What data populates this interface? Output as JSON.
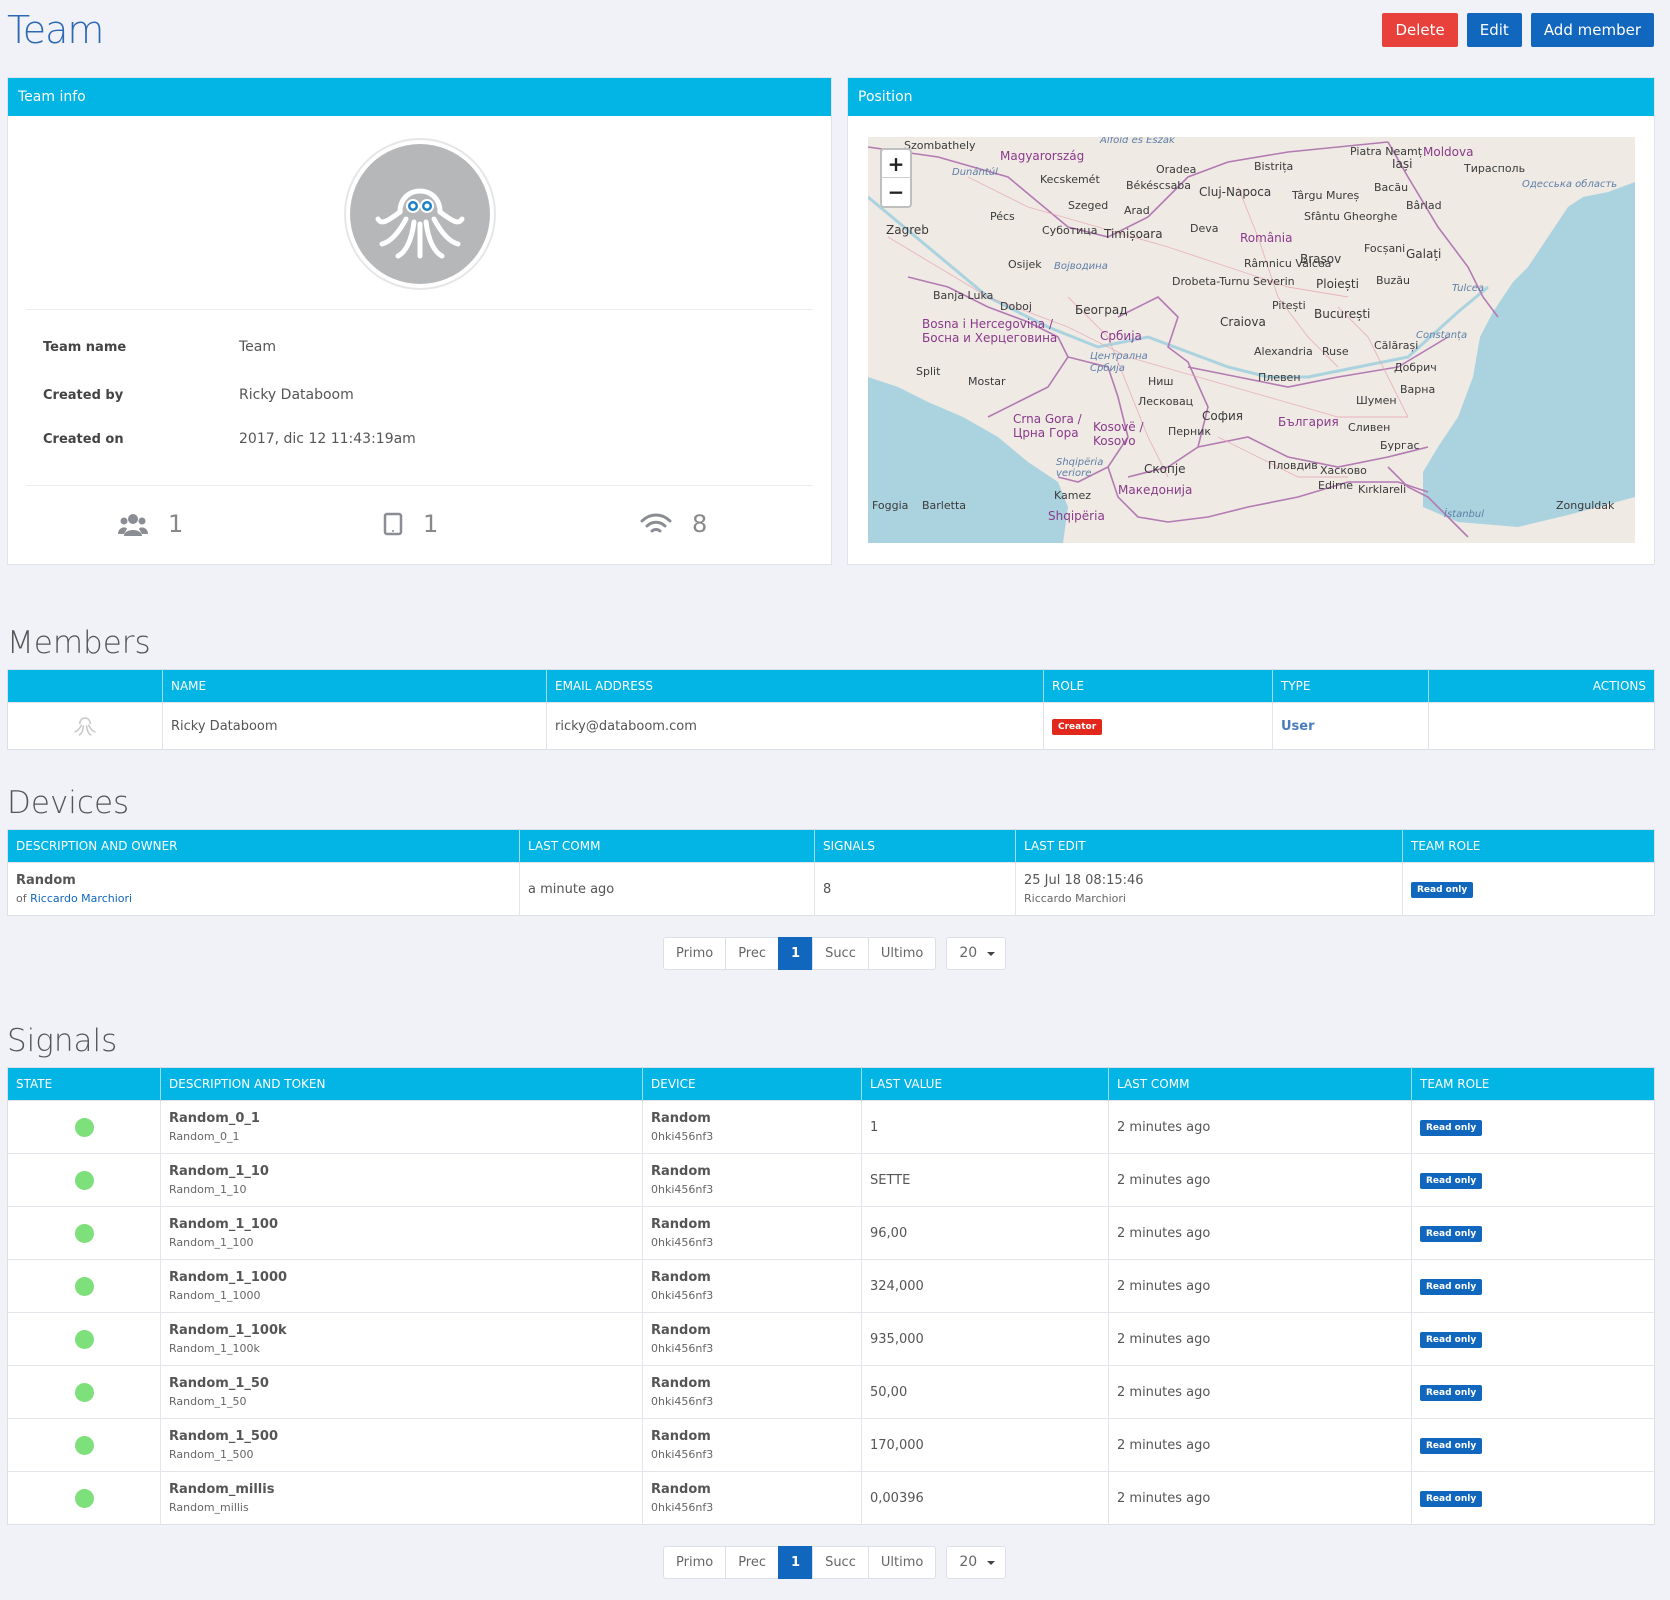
{
  "page": {
    "title": "Team"
  },
  "actions": {
    "delete": "Delete",
    "edit": "Edit",
    "add_member": "Add member"
  },
  "team_info": {
    "header": "Team info",
    "fields": [
      {
        "label": "Team name",
        "value": "Team"
      },
      {
        "label": "Created by",
        "value": "Ricky Databoom"
      },
      {
        "label": "Created on",
        "value": "2017, dic 12 11:43:19am"
      }
    ],
    "stats": {
      "members": "1",
      "devices": "1",
      "signals": "8"
    }
  },
  "position": {
    "header": "Position",
    "map_labels": [
      "Szombathely",
      "Magyarország",
      "Dunántúl",
      "Alföld és Észak",
      "Oradea",
      "Kecskemét",
      "Békéscsaba",
      "Cluj-Napoca",
      "Bistrița",
      "Piatra Neamț",
      "Iași",
      "Moldova",
      "Тирасполь",
      "Pécs",
      "Szeged",
      "Arad",
      "Târgu Mureș",
      "Bacău",
      "Одесська область",
      "Zagreb",
      "Суботица",
      "Timișoara",
      "Deva",
      "România",
      "Sfântu Gheorghe",
      "Bârlad",
      "Osijek",
      "Војводина",
      "Brașov",
      "Focșani",
      "Galați",
      "Drobeta-Turnu Severin",
      "Râmnicu Vâlcea",
      "Ploiești",
      "Buzău",
      "Tulcea",
      "Banja Luka",
      "Doboj",
      "Београд",
      "Pitești",
      "București",
      "Bosna i Hercegovina / Босна и Херцеговина",
      "Србија",
      "Craiova",
      "Constanța",
      "Централна Србија",
      "Alexandria",
      "Ruse",
      "Călărași",
      "Split",
      "Mostar",
      "Ниш",
      "Плевен",
      "Добрич",
      "Лесковац",
      "Варна",
      "Шумен",
      "Crna Gora / Црна Гора",
      "Kosovë / Kosovo",
      "Перник",
      "София",
      "България",
      "Сливен",
      "Бургас",
      "Shqipëria veriore",
      "Скопје",
      "Пловдив",
      "Хасково",
      "Kamez",
      "Македонија",
      "Edirne",
      "Kırklareli",
      "Foggia",
      "Barletta",
      "Shqipëria",
      "İstanbul",
      "Zonguldak"
    ],
    "zoom_in": "+",
    "zoom_out": "−"
  },
  "members": {
    "title": "Members",
    "columns": [
      "",
      "NAME",
      "EMAIL ADDRESS",
      "ROLE",
      "TYPE",
      "ACTIONS"
    ],
    "rows": [
      {
        "name": "Ricky Databoom",
        "email": "ricky@databoom.com",
        "role": "Creator",
        "type": "User"
      }
    ]
  },
  "devices": {
    "title": "Devices",
    "columns": [
      "DESCRIPTION AND OWNER",
      "LAST COMM",
      "SIGNALS",
      "LAST EDIT",
      "TEAM ROLE"
    ],
    "rows": [
      {
        "name": "Random",
        "owner_prefix": "of ",
        "owner": "Riccardo Marchiori",
        "last_comm": "a minute ago",
        "signals": "8",
        "last_edit": "25 Jul 18 08:15:46",
        "last_edit_by": "Riccardo Marchiori",
        "role": "Read only"
      }
    ]
  },
  "pager": {
    "first": "Primo",
    "prev": "Prec",
    "page": "1",
    "next": "Succ",
    "last": "Ultimo",
    "size": "20"
  },
  "signals": {
    "title": "Signals",
    "columns": [
      "STATE",
      "DESCRIPTION AND TOKEN",
      "DEVICE",
      "LAST VALUE",
      "LAST COMM",
      "TEAM ROLE"
    ],
    "rows": [
      {
        "name": "Random_0_1",
        "token": "Random_0_1",
        "device": "Random",
        "device_id": "0hki456nf3",
        "value": "1",
        "last_comm": "2 minutes ago",
        "role": "Read only",
        "state_color": "#7ee07a"
      },
      {
        "name": "Random_1_10",
        "token": "Random_1_10",
        "device": "Random",
        "device_id": "0hki456nf3",
        "value": "SETTE",
        "last_comm": "2 minutes ago",
        "role": "Read only",
        "state_color": "#7ee07a"
      },
      {
        "name": "Random_1_100",
        "token": "Random_1_100",
        "device": "Random",
        "device_id": "0hki456nf3",
        "value": "96,00",
        "last_comm": "2 minutes ago",
        "role": "Read only",
        "state_color": "#7ee07a"
      },
      {
        "name": "Random_1_1000",
        "token": "Random_1_1000",
        "device": "Random",
        "device_id": "0hki456nf3",
        "value": "324,000",
        "last_comm": "2 minutes ago",
        "role": "Read only",
        "state_color": "#7ee07a"
      },
      {
        "name": "Random_1_100k",
        "token": "Random_1_100k",
        "device": "Random",
        "device_id": "0hki456nf3",
        "value": "935,000",
        "last_comm": "2 minutes ago",
        "role": "Read only",
        "state_color": "#7ee07a"
      },
      {
        "name": "Random_1_50",
        "token": "Random_1_50",
        "device": "Random",
        "device_id": "0hki456nf3",
        "value": "50,00",
        "last_comm": "2 minutes ago",
        "role": "Read only",
        "state_color": "#7ee07a"
      },
      {
        "name": "Random_1_500",
        "token": "Random_1_500",
        "device": "Random",
        "device_id": "0hki456nf3",
        "value": "170,000",
        "last_comm": "2 minutes ago",
        "role": "Read only",
        "state_color": "#7ee07a"
      },
      {
        "name": "Random_millis",
        "token": "Random_millis",
        "device": "Random",
        "device_id": "0hki456nf3",
        "value": "0,00396",
        "last_comm": "2 minutes ago",
        "role": "Read only",
        "state_color": "#7ee07a"
      }
    ]
  },
  "colors": {
    "accent": "#03b5e5",
    "primary": "#1167bd",
    "danger": "#e8413b",
    "ok": "#7ee07a"
  }
}
